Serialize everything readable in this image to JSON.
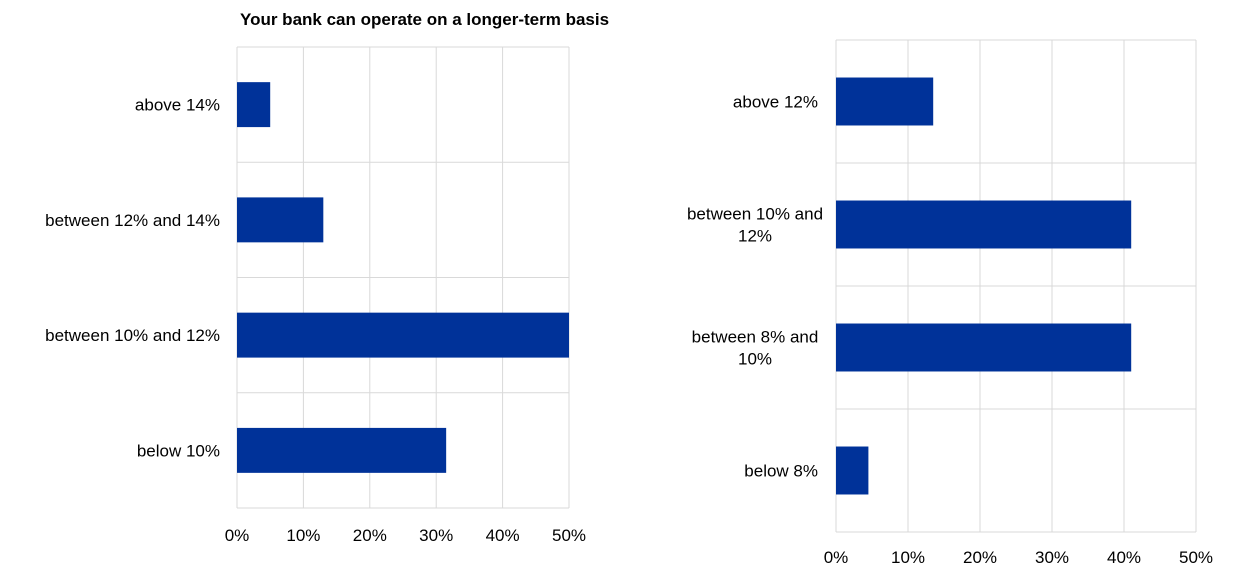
{
  "chart_data": [
    {
      "type": "bar",
      "orientation": "horizontal",
      "title": "Your bank can operate on a longer-term basis",
      "categories": [
        "above 14%",
        "between 12% and 14%",
        "between 10% and 12%",
        "below 10%"
      ],
      "values": [
        5,
        13,
        50,
        31.5
      ],
      "xlim": [
        0,
        50
      ],
      "xticks": [
        "0%",
        "10%",
        "20%",
        "30%",
        "40%",
        "50%"
      ],
      "bar_color": "#003299",
      "grid": true
    },
    {
      "type": "bar",
      "orientation": "horizontal",
      "title": "",
      "categories": [
        [
          "above 12%"
        ],
        [
          "between 10% and",
          "12%"
        ],
        [
          "between 8% and",
          "10%"
        ],
        [
          "below 8%"
        ]
      ],
      "values": [
        13.5,
        41,
        41,
        4.5
      ],
      "xlim": [
        0,
        50
      ],
      "xticks": [
        "0%",
        "10%",
        "20%",
        "30%",
        "40%",
        "50%"
      ],
      "bar_color": "#003299",
      "grid": true
    }
  ]
}
